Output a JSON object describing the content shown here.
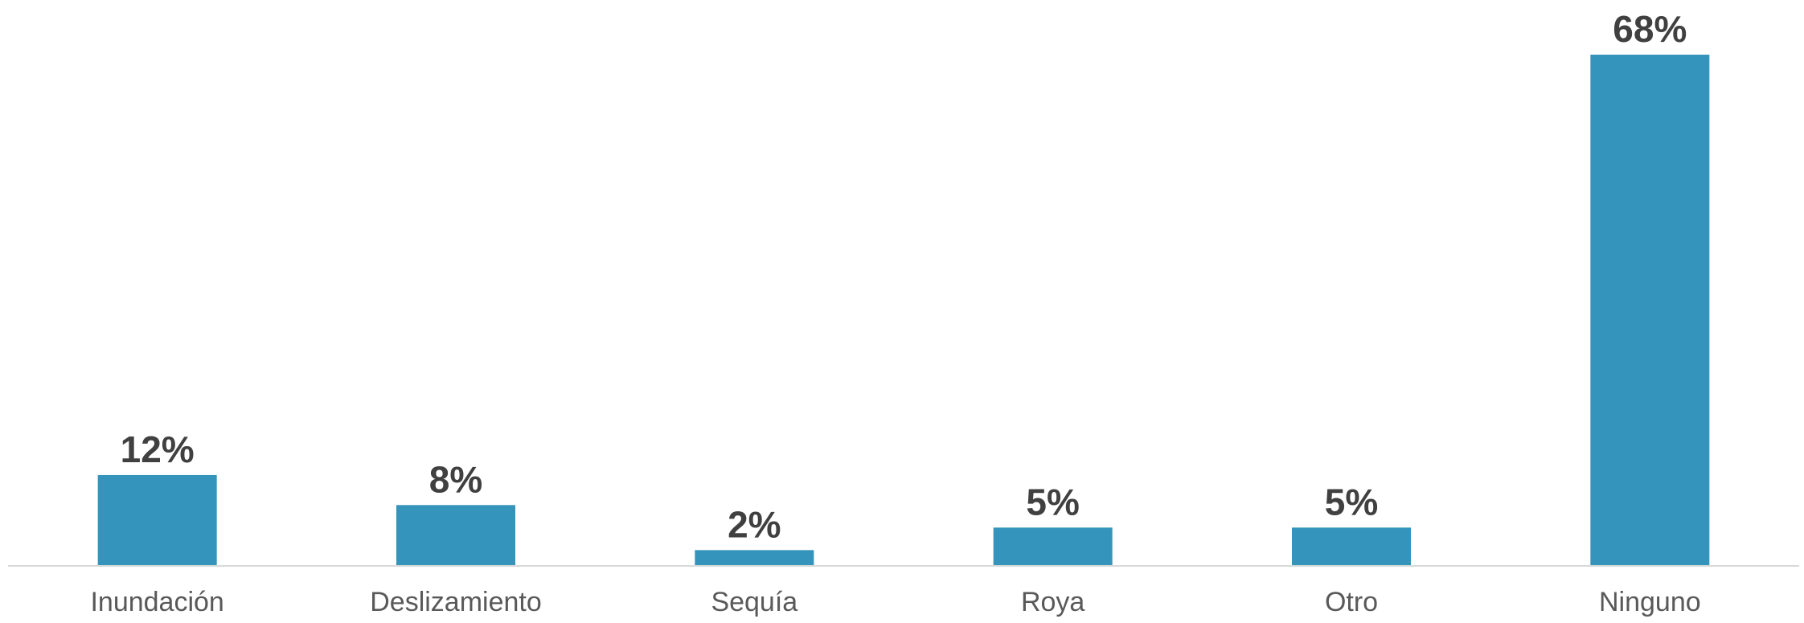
{
  "chart_data": {
    "type": "bar",
    "title": "",
    "xlabel": "",
    "ylabel": "",
    "categories": [
      "Inundación",
      "Deslizamiento",
      "Sequía",
      "Roya",
      "Otro",
      "Ninguno"
    ],
    "values": [
      12,
      8,
      2,
      5,
      5,
      68
    ],
    "value_labels": [
      "12%",
      "8%",
      "2%",
      "5%",
      "5%",
      "68%"
    ],
    "unit": "%",
    "ylim": [
      0,
      68
    ],
    "grid": false,
    "legend": "none",
    "bar_color": "#3594BB",
    "axis_color": "#D9D9D9"
  }
}
